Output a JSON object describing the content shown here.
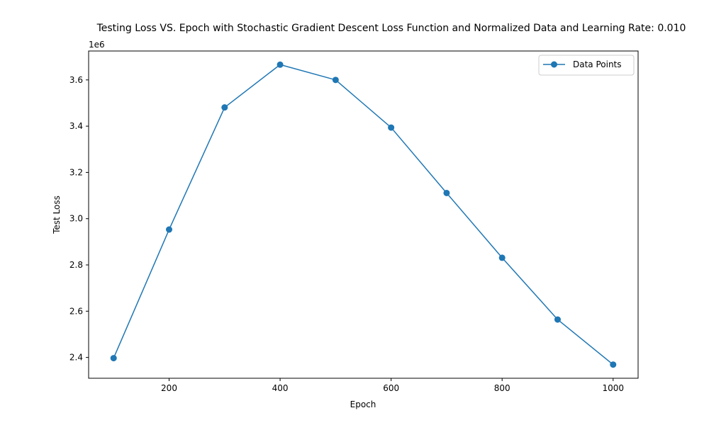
{
  "chart_data": {
    "type": "line",
    "title": "Testing Loss VS. Epoch with Stochastic Gradient Descent Loss Function and Normalized Data and Learning Rate: 0.010",
    "xlabel": "Epoch",
    "ylabel": "Test Loss",
    "y_offset_label": "1e6",
    "x": [
      100,
      200,
      300,
      400,
      500,
      600,
      700,
      800,
      900,
      1000
    ],
    "series": [
      {
        "name": "Data Points",
        "color": "#1f77b4",
        "marker": "circle",
        "values": [
          2397000,
          2953000,
          3481000,
          3666000,
          3600000,
          3394000,
          3111000,
          2831000,
          2564000,
          2369000
        ]
      }
    ],
    "xlim": [
      55,
      1045
    ],
    "ylim": [
      2310000,
      3725000
    ],
    "x_ticks": [
      200,
      400,
      600,
      800,
      1000
    ],
    "x_tick_labels": [
      "200",
      "400",
      "600",
      "800",
      "1000"
    ],
    "y_ticks": [
      2400000,
      2600000,
      2800000,
      3000000,
      3200000,
      3400000,
      3600000
    ],
    "y_tick_labels": [
      "2.4",
      "2.6",
      "2.8",
      "3.0",
      "3.2",
      "3.4",
      "3.6"
    ],
    "grid": false,
    "legend_position": "upper right"
  }
}
